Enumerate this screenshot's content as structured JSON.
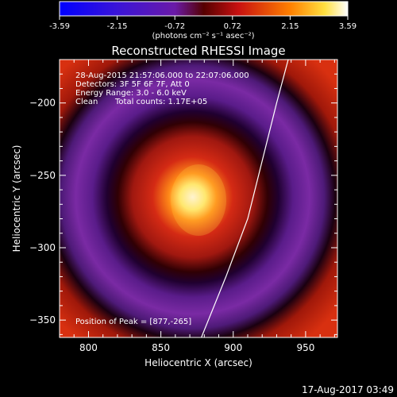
{
  "colorbar": {
    "ticks": [
      "-3.59",
      "-2.15",
      "-0.72",
      "0.72",
      "2.15",
      "3.59"
    ],
    "unit_label": "(photons cm⁻² s⁻¹ asec⁻²)"
  },
  "info": {
    "time_range": "28-Aug-2015 21:57:06.000 to 22:07:06.000",
    "detectors": "Detectors: 3F 5F 6F 7F, Att 0",
    "energy": "Energy Range: 3.0 - 6.0 keV",
    "clean": "Clean",
    "total_counts": "Total counts: 1.17E+05",
    "peak": "Position of Peak = [877,-265]"
  },
  "footer": {
    "timestamp": "17-Aug-2017 03:49"
  },
  "chart_data": {
    "type": "heatmap",
    "title": "Reconstructed RHESSI Image",
    "xlabel": "Heliocentric X (arcsec)",
    "ylabel": "Heliocentric Y (arcsec)",
    "xlim": [
      780,
      972
    ],
    "ylim": [
      -362,
      -170
    ],
    "xticks": [
      800,
      850,
      900,
      950
    ],
    "yticks": [
      -200,
      -250,
      -300,
      -350
    ],
    "colorbar_range": [
      -3.59,
      3.59
    ],
    "peak": [
      877,
      -265
    ],
    "limb_curve": [
      [
        878,
        -362
      ],
      [
        895,
        -320
      ],
      [
        910,
        -280
      ],
      [
        920,
        -240
      ],
      [
        930,
        -200
      ],
      [
        938,
        -170
      ]
    ]
  }
}
